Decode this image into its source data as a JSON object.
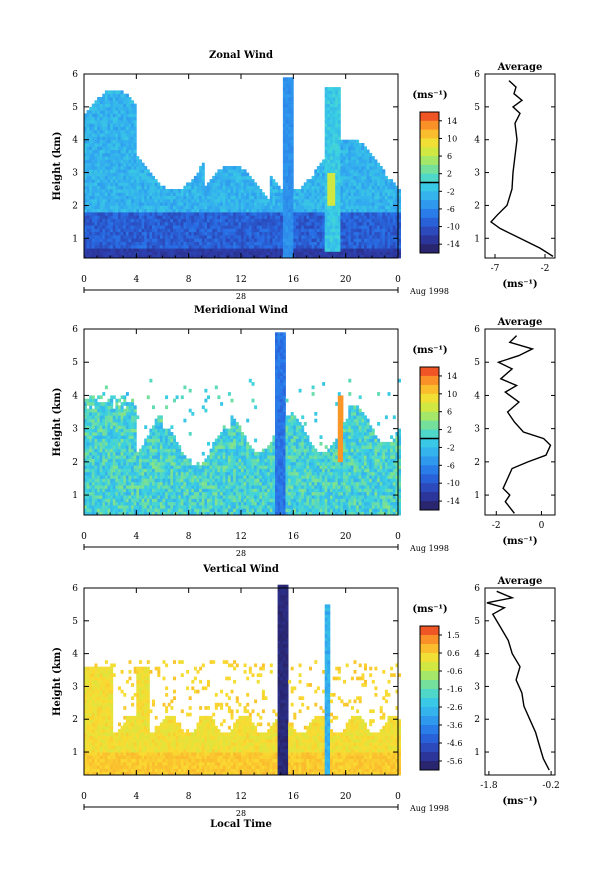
{
  "chart_data": [
    {
      "type": "heatmap",
      "title": "Zonal Wind",
      "ylabel": "Height (km)",
      "xlabel": "",
      "x_ticks": [
        "0",
        "4",
        "8",
        "12",
        "16",
        "20",
        "0"
      ],
      "y_ticks": [
        "1",
        "2",
        "3",
        "4",
        "5",
        "6"
      ],
      "xlim": [
        0,
        24
      ],
      "ylim": [
        0.4,
        6
      ],
      "date_center": "28",
      "date_right": "Aug 1998",
      "colorbar": {
        "unit": "(ms⁻¹)",
        "labels": [
          "14",
          "10",
          "6",
          "2",
          "-2",
          "-6",
          "-10",
          "-14"
        ],
        "range": [
          -16,
          16
        ],
        "marker": 0
      },
      "average": {
        "title": "Average",
        "x_ticks": [
          "-7",
          "-2"
        ],
        "xlim": [
          -8,
          -1
        ],
        "xlabel": "(ms⁻¹)",
        "y_ticks": [
          "1",
          "2",
          "3",
          "4",
          "5",
          "6"
        ],
        "profile": [
          [
            -1.2,
            0.45
          ],
          [
            -2.5,
            0.7
          ],
          [
            -4.5,
            1.0
          ],
          [
            -6.5,
            1.3
          ],
          [
            -7.4,
            1.5
          ],
          [
            -6.8,
            1.7
          ],
          [
            -5.8,
            2.0
          ],
          [
            -5.3,
            2.5
          ],
          [
            -5.2,
            3.0
          ],
          [
            -5.0,
            3.5
          ],
          [
            -4.8,
            4.0
          ],
          [
            -5.0,
            4.5
          ],
          [
            -4.5,
            4.8
          ],
          [
            -5.2,
            5.0
          ],
          [
            -4.3,
            5.2
          ],
          [
            -5.1,
            5.4
          ],
          [
            -4.9,
            5.6
          ],
          [
            -5.6,
            5.8
          ]
        ]
      }
    },
    {
      "type": "heatmap",
      "title": "Meridional Wind",
      "ylabel": "Height (km)",
      "xlabel": "",
      "x_ticks": [
        "0",
        "4",
        "8",
        "12",
        "16",
        "20",
        "0"
      ],
      "y_ticks": [
        "1",
        "2",
        "3",
        "4",
        "5",
        "6"
      ],
      "xlim": [
        0,
        24
      ],
      "ylim": [
        0.4,
        6
      ],
      "date_center": "28",
      "date_right": "Aug 1998",
      "colorbar": {
        "unit": "(ms⁻¹)",
        "labels": [
          "14",
          "10",
          "6",
          "2",
          "-2",
          "-6",
          "-10",
          "-14"
        ],
        "range": [
          -16,
          16
        ],
        "marker": 0
      },
      "average": {
        "title": "Average",
        "x_ticks": [
          "-2",
          "0"
        ],
        "xlim": [
          -2.5,
          0.6
        ],
        "xlabel": "(ms⁻¹)",
        "y_ticks": [
          "1",
          "2",
          "3",
          "4",
          "5",
          "6"
        ],
        "profile": [
          [
            -1.2,
            0.45
          ],
          [
            -1.6,
            0.8
          ],
          [
            -1.4,
            1.0
          ],
          [
            -1.7,
            1.2
          ],
          [
            -1.5,
            1.5
          ],
          [
            -1.3,
            1.8
          ],
          [
            -0.6,
            2.0
          ],
          [
            0.2,
            2.2
          ],
          [
            0.4,
            2.5
          ],
          [
            0.1,
            2.7
          ],
          [
            -0.8,
            2.9
          ],
          [
            -1.2,
            3.2
          ],
          [
            -1.5,
            3.5
          ],
          [
            -1.0,
            3.8
          ],
          [
            -1.6,
            4.1
          ],
          [
            -1.1,
            4.3
          ],
          [
            -1.8,
            4.5
          ],
          [
            -1.3,
            4.8
          ],
          [
            -1.9,
            5.0
          ],
          [
            -1.0,
            5.2
          ],
          [
            -0.4,
            5.4
          ],
          [
            -1.4,
            5.6
          ],
          [
            -1.1,
            5.8
          ]
        ]
      }
    },
    {
      "type": "heatmap",
      "title": "Vertical Wind",
      "ylabel": "Height (km)",
      "xlabel": "Local Time",
      "x_ticks": [
        "0",
        "4",
        "8",
        "12",
        "16",
        "20",
        "0"
      ],
      "y_ticks": [
        "1",
        "2",
        "3",
        "4",
        "5",
        "6"
      ],
      "xlim": [
        0,
        24
      ],
      "ylim": [
        0.3,
        6
      ],
      "date_center": "28",
      "date_right": "Aug 1998",
      "colorbar": {
        "unit": "(ms⁻¹)",
        "labels": [
          "1.5",
          "0.6",
          "-0.6",
          "-1.6",
          "-2.6",
          "-3.6",
          "-4.6",
          "-5.6"
        ],
        "range": [
          -6,
          2
        ],
        "marker": null
      },
      "average": {
        "title": "Average",
        "x_ticks": [
          "-1.8",
          "-0.2"
        ],
        "xlim": [
          -1.9,
          -0.1
        ],
        "xlabel": "(ms⁻¹)",
        "y_ticks": [
          "1",
          "2",
          "3",
          "4",
          "5",
          "6"
        ],
        "profile": [
          [
            -0.25,
            0.45
          ],
          [
            -0.4,
            0.8
          ],
          [
            -0.5,
            1.2
          ],
          [
            -0.6,
            1.6
          ],
          [
            -0.75,
            2.0
          ],
          [
            -0.9,
            2.4
          ],
          [
            -0.95,
            2.8
          ],
          [
            -1.1,
            3.2
          ],
          [
            -1.0,
            3.6
          ],
          [
            -1.2,
            4.0
          ],
          [
            -1.3,
            4.4
          ],
          [
            -1.5,
            4.8
          ],
          [
            -1.7,
            5.2
          ],
          [
            -1.4,
            5.4
          ],
          [
            -1.85,
            5.55
          ],
          [
            -1.2,
            5.7
          ],
          [
            -1.6,
            5.9
          ]
        ]
      }
    }
  ]
}
